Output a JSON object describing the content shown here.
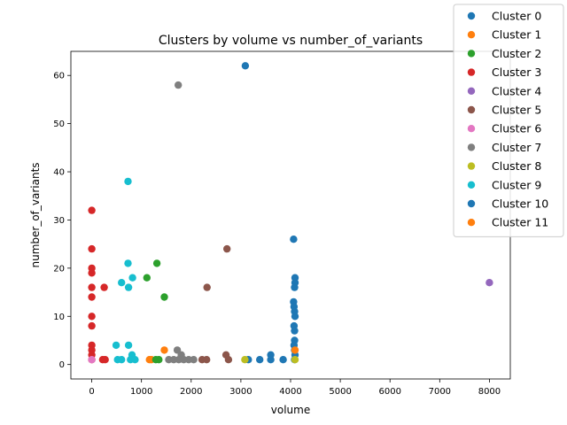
{
  "chart_data": {
    "type": "scatter",
    "title": "Clusters by volume vs number_of_variants",
    "xlabel": "volume",
    "ylabel": "number_of_variants",
    "xlim": [
      -420,
      8420
    ],
    "ylim": [
      -3,
      65
    ],
    "xticks": [
      0,
      1000,
      2000,
      3000,
      4000,
      5000,
      6000,
      7000,
      8000
    ],
    "yticks": [
      0,
      10,
      20,
      30,
      40,
      50,
      60
    ],
    "grid": false,
    "legend_position": "top-right",
    "series": [
      {
        "name": "Cluster 0",
        "color": "#1f77b4",
        "points": [
          [
            3090,
            62
          ],
          [
            4060,
            26
          ],
          [
            4090,
            18
          ],
          [
            4090,
            17
          ],
          [
            4080,
            16
          ],
          [
            4060,
            13
          ],
          [
            4070,
            12
          ],
          [
            4080,
            11
          ],
          [
            4090,
            10
          ],
          [
            4070,
            8
          ],
          [
            4080,
            7
          ],
          [
            4080,
            5
          ],
          [
            4070,
            4
          ],
          [
            4080,
            3
          ],
          [
            4090,
            2
          ],
          [
            4080,
            1
          ],
          [
            3150,
            1
          ],
          [
            3380,
            1
          ],
          [
            3600,
            1
          ],
          [
            3600,
            2
          ],
          [
            3850,
            1
          ]
        ]
      },
      {
        "name": "Cluster 1",
        "color": "#ff7f0e",
        "points": [
          [
            4090,
            3
          ],
          [
            1460,
            3
          ],
          [
            1160,
            1
          ],
          [
            1200,
            1
          ]
        ]
      },
      {
        "name": "Cluster 2",
        "color": "#2ca02c",
        "points": [
          [
            1110,
            18
          ],
          [
            1310,
            21
          ],
          [
            1460,
            14
          ],
          [
            1290,
            1
          ],
          [
            1350,
            1
          ]
        ]
      },
      {
        "name": "Cluster 3",
        "color": "#d62728",
        "points": [
          [
            0,
            32
          ],
          [
            0,
            24
          ],
          [
            0,
            20
          ],
          [
            0,
            19
          ],
          [
            0,
            16
          ],
          [
            0,
            14
          ],
          [
            0,
            10
          ],
          [
            0,
            8
          ],
          [
            0,
            4
          ],
          [
            0,
            3
          ],
          [
            0,
            2
          ],
          [
            0,
            1
          ],
          [
            250,
            16
          ],
          [
            220,
            1
          ],
          [
            270,
            1
          ]
        ]
      },
      {
        "name": "Cluster 4",
        "color": "#9467bd",
        "points": [
          [
            8000,
            17
          ]
        ]
      },
      {
        "name": "Cluster 5",
        "color": "#8c564b",
        "points": [
          [
            2720,
            24
          ],
          [
            2320,
            16
          ],
          [
            2700,
            2
          ],
          [
            2750,
            1
          ],
          [
            2220,
            1
          ],
          [
            2310,
            1
          ]
        ]
      },
      {
        "name": "Cluster 6",
        "color": "#e377c2",
        "points": [
          [
            0,
            1
          ]
        ]
      },
      {
        "name": "Cluster 7",
        "color": "#7f7f7f",
        "points": [
          [
            1740,
            58
          ],
          [
            1720,
            3
          ],
          [
            1800,
            2
          ],
          [
            1550,
            1
          ],
          [
            1650,
            1
          ],
          [
            1750,
            1
          ],
          [
            1850,
            1
          ],
          [
            1950,
            1
          ],
          [
            2050,
            1
          ]
        ]
      },
      {
        "name": "Cluster 8",
        "color": "#bcbd22",
        "points": [
          [
            3080,
            1
          ],
          [
            4090,
            1
          ]
        ]
      },
      {
        "name": "Cluster 9",
        "color": "#17becf",
        "points": [
          [
            730,
            38
          ],
          [
            730,
            21
          ],
          [
            600,
            17
          ],
          [
            820,
            18
          ],
          [
            740,
            16
          ],
          [
            490,
            4
          ],
          [
            740,
            4
          ],
          [
            810,
            2
          ],
          [
            520,
            1
          ],
          [
            600,
            1
          ],
          [
            780,
            1
          ],
          [
            870,
            1
          ]
        ]
      },
      {
        "name": "Cluster 10",
        "color": "#1f77b4",
        "points": []
      },
      {
        "name": "Cluster 11",
        "color": "#ff7f0e",
        "points": []
      }
    ]
  }
}
